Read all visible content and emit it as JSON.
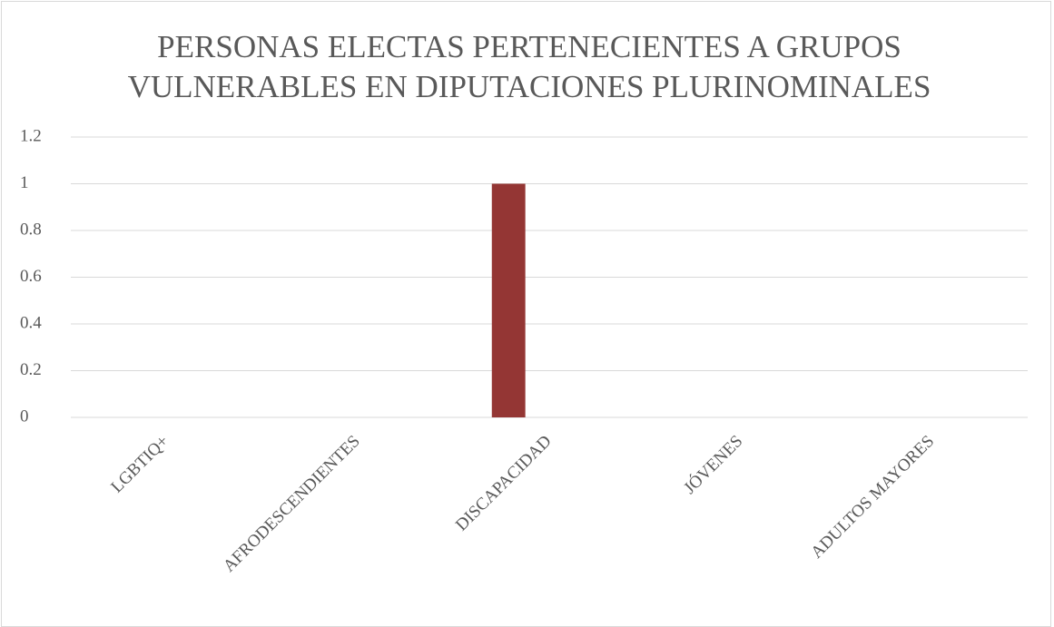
{
  "chart_data": {
    "type": "bar",
    "title": "PERSONAS ELECTAS PERTENECIENTES A GRUPOS VULNERABLES EN DIPUTACIONES PLURINOMINALES",
    "categories": [
      "LGBTIQ+",
      "AFRODESCENDIENTES",
      "DISCAPACIDAD",
      "JÓVENES",
      "ADULTOS MAYORES"
    ],
    "values": [
      0,
      0,
      1,
      0,
      0
    ],
    "color": "#943634",
    "ylim": [
      0,
      1.2
    ],
    "yticks": [
      0,
      0.2,
      0.4,
      0.6,
      0.8,
      1,
      1.2
    ],
    "grid": true
  }
}
